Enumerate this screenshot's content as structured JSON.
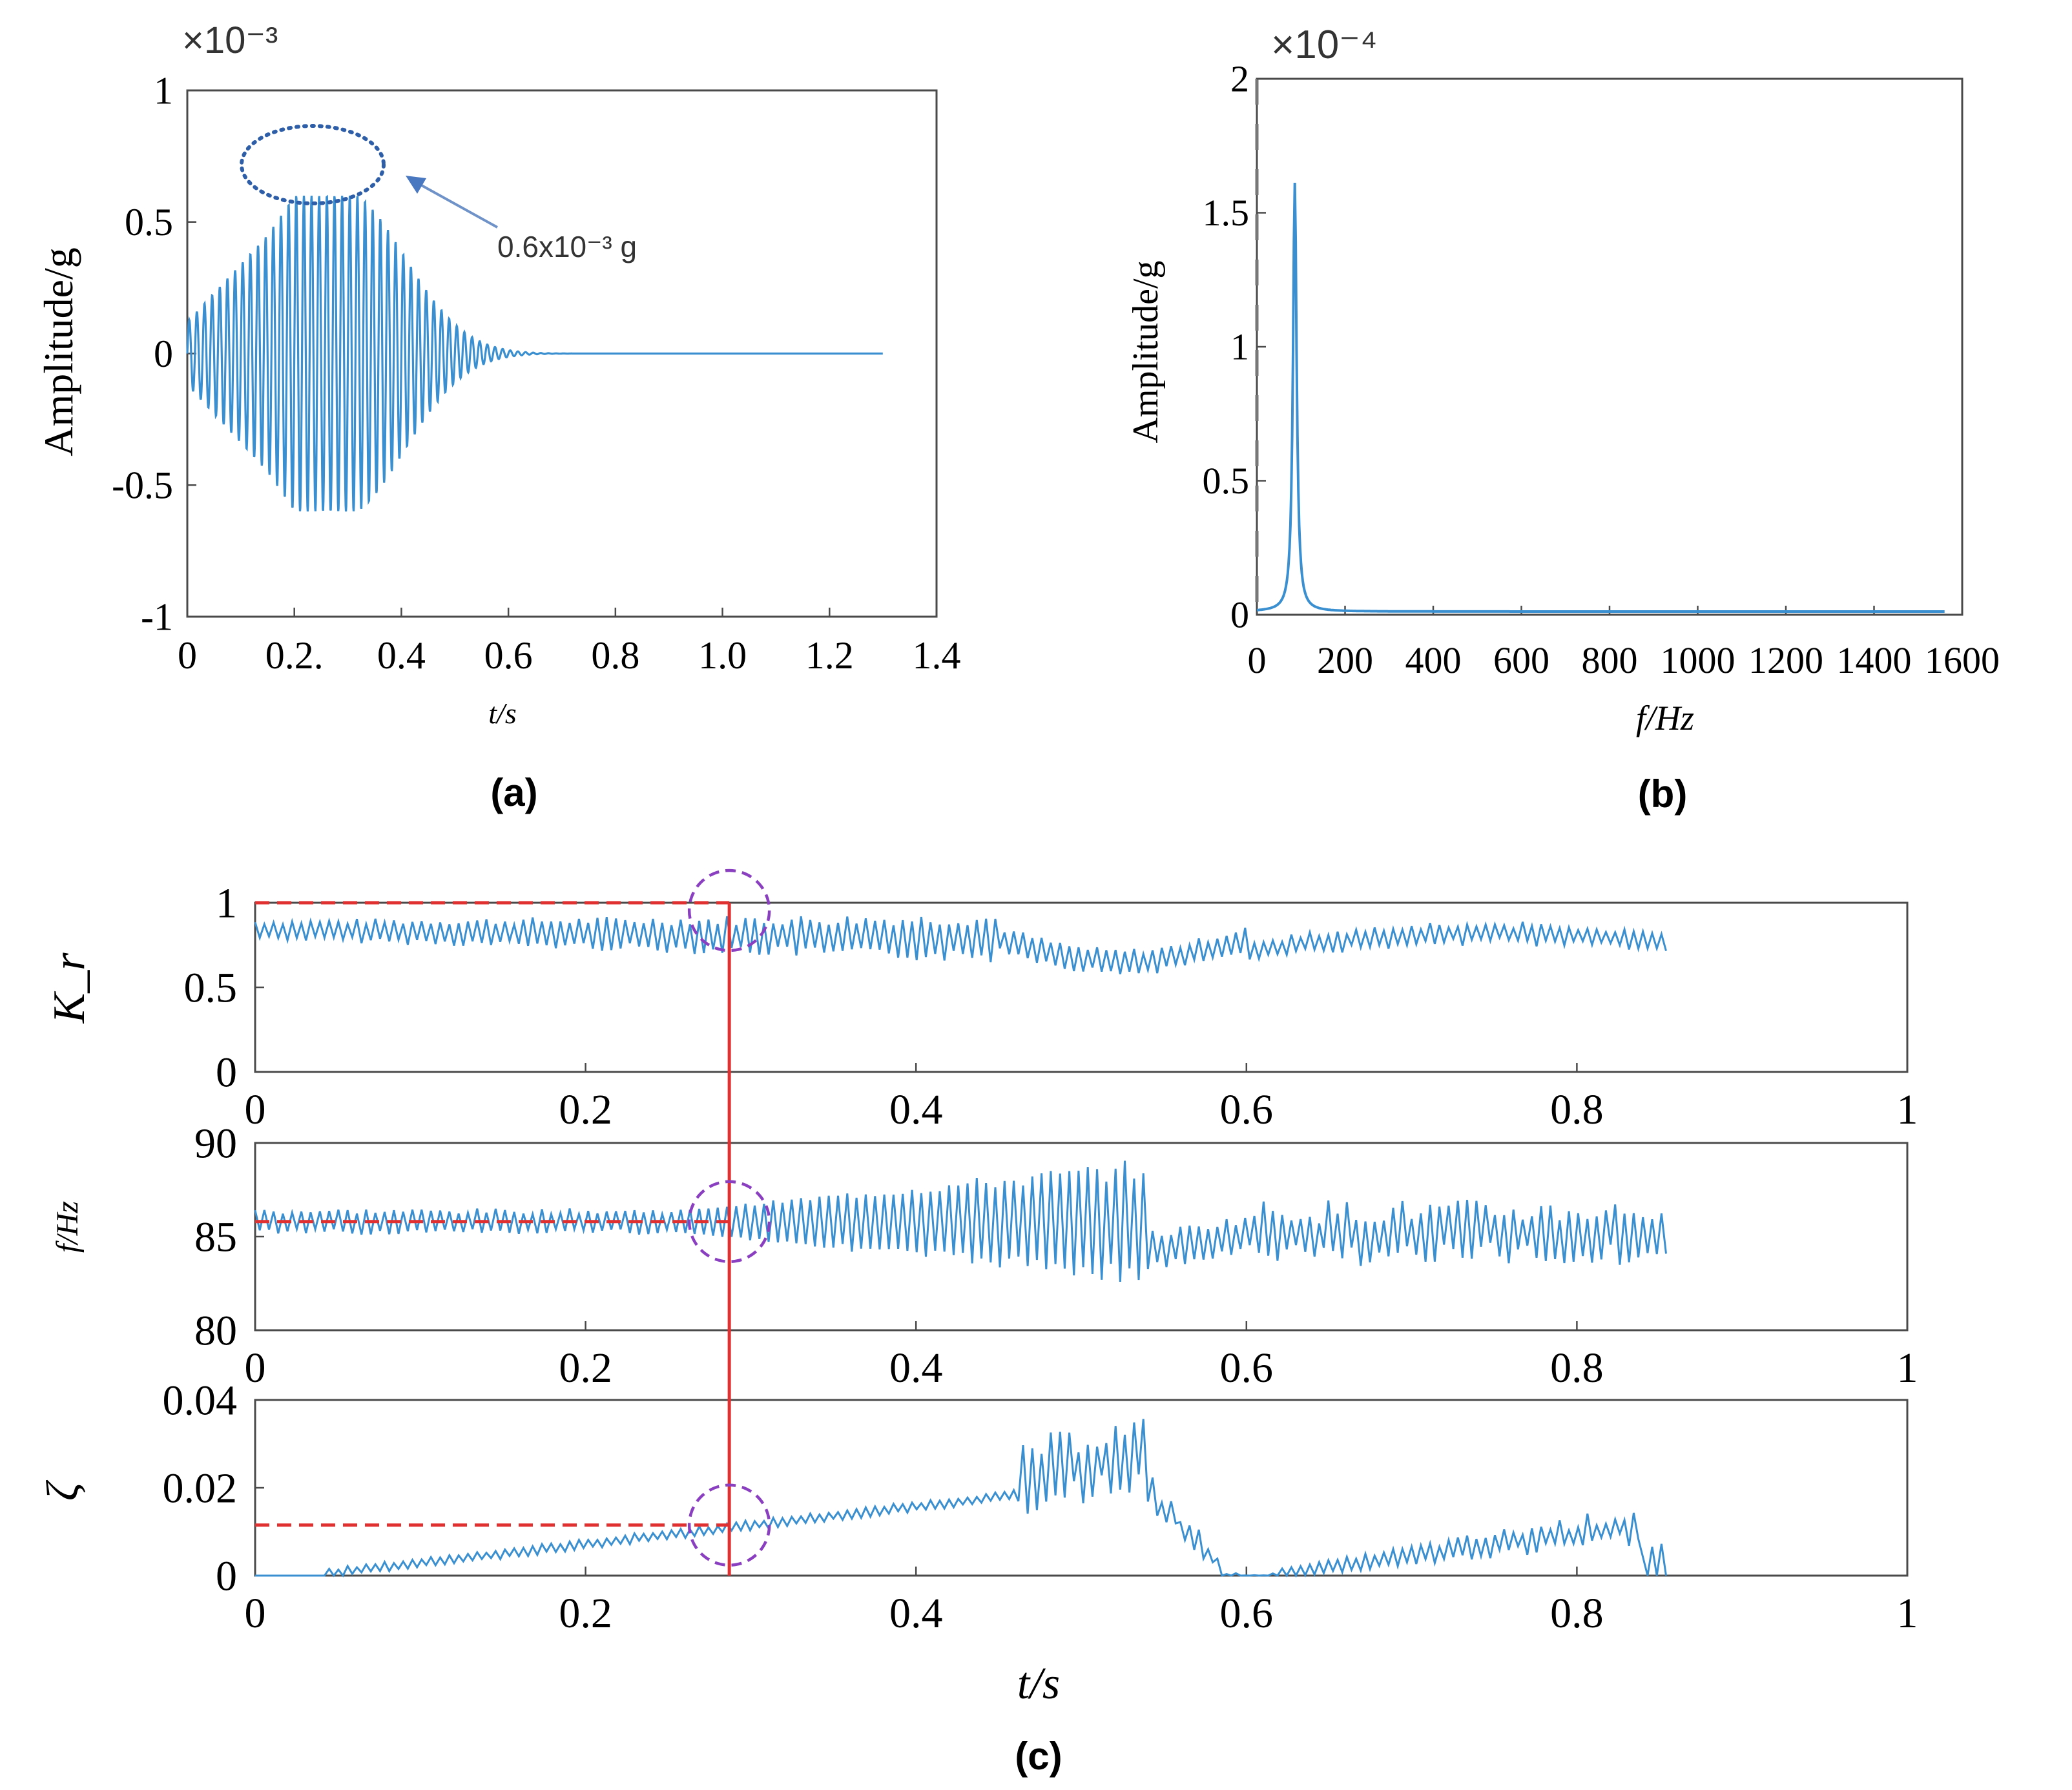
{
  "colors": {
    "signal": "#3a8fd0",
    "marker": "#e03030",
    "highlight": "#8a3fc0",
    "annotation": "#2e5ea8",
    "frame": "#4a4a4a"
  },
  "chart_data": [
    {
      "id": "a",
      "type": "line",
      "panel_label": "(a)",
      "title": "",
      "xlabel": "t/s",
      "ylabel": "Amplitude/g",
      "exponent": "×10⁻³",
      "xlim": [
        0,
        1.4
      ],
      "ylim": [
        -1,
        1
      ],
      "xticks": [
        "0",
        "0.2.",
        "0.4",
        "0.6",
        "0.8",
        "1.0",
        "1.2",
        "1.4"
      ],
      "yticks": [
        "1",
        "0.5",
        "0",
        "-0.5",
        "-1"
      ],
      "signal": {
        "description": "decaying beat",
        "peak_amplitude": 0.6,
        "peak_time": 0.25,
        "signal_end": 1.3,
        "frequency_hz": 86
      },
      "annotation": {
        "text": "0.6x10⁻³ g",
        "value": 0.6
      }
    },
    {
      "id": "b",
      "type": "line",
      "panel_label": "(b)",
      "xlabel": "f/Hz",
      "ylabel": "Amplitude/g",
      "exponent": "×10⁻⁴",
      "xlim": [
        0,
        1600
      ],
      "ylim": [
        0,
        2
      ],
      "xticks": [
        "0",
        "200",
        "400",
        "600",
        "800",
        "1000",
        "1200",
        "1400",
        "1600"
      ],
      "yticks": [
        "2",
        "1.5",
        "1",
        "0.5",
        "0"
      ],
      "peak": {
        "frequency": 86,
        "amplitude": 1.6
      }
    },
    {
      "id": "c1",
      "type": "line",
      "ylabel": "K_r",
      "xlim": [
        0,
        1
      ],
      "ylim": [
        0,
        1
      ],
      "xticks": [
        "0",
        "0.2",
        "0.4",
        "0.6",
        "0.8",
        "1"
      ],
      "yticks": [
        "1",
        "0.5",
        "0"
      ],
      "reference": {
        "t": 0.287,
        "value": 1.0
      }
    },
    {
      "id": "c2",
      "type": "line",
      "ylabel": "f/Hz",
      "xlim": [
        0,
        1
      ],
      "ylim": [
        80,
        90
      ],
      "xticks": [
        "0",
        "0.2",
        "0.4",
        "0.6",
        "0.8",
        "1"
      ],
      "yticks": [
        "90",
        "85",
        "80"
      ],
      "reference": {
        "t": 0.287,
        "value": 85.8
      }
    },
    {
      "id": "c3",
      "type": "line",
      "ylabel": "ζ",
      "xlabel": "t/s",
      "panel_label": "(c)",
      "xlim": [
        0,
        1
      ],
      "ylim": [
        0,
        0.04
      ],
      "xticks": [
        "0",
        "0.2",
        "0.4",
        "0.6",
        "0.8",
        "1"
      ],
      "yticks": [
        "0.04",
        "0.02",
        "0"
      ],
      "reference": {
        "t": 0.287,
        "value": 0.0115
      }
    }
  ]
}
